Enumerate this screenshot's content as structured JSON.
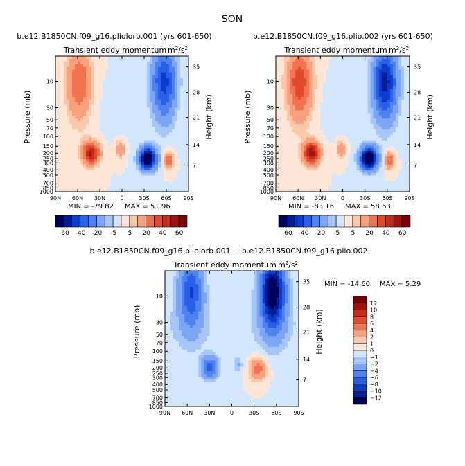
{
  "figure": {
    "season": "SON",
    "variable_label": "Transient eddy momentum",
    "units_base": "m",
    "units_exp_num": "2",
    "units_sep": "/",
    "units_den": "s",
    "units_exp_den": "2"
  },
  "chart_data": [
    {
      "type": "heatmap",
      "id": "panel-a",
      "title": "b.e12.B1850CN.f09_g16.pliolorb.001 (yrs 601-650)",
      "subtitle": "Transient eddy momentum",
      "xlabel": "",
      "ylabel": "Pressure (mb)",
      "y2label": "Height (km)",
      "x_ticks": [
        "90N",
        "60N",
        "30N",
        "0",
        "30S",
        "60S",
        "90S"
      ],
      "x_values": [
        90,
        60,
        30,
        0,
        -30,
        -60,
        -90
      ],
      "y_ticks": [
        "10",
        "30",
        "50",
        "70",
        "100",
        "150",
        "200",
        "250",
        "300",
        "400",
        "500",
        "700",
        "850",
        "1000"
      ],
      "y_values": [
        10,
        30,
        50,
        70,
        100,
        150,
        200,
        250,
        300,
        400,
        500,
        700,
        850,
        1000
      ],
      "y2_ticks": [
        "35",
        "28",
        "21",
        "14",
        "7"
      ],
      "ylim": [
        1000,
        3.5
      ],
      "min_label": "MIN = -79.82",
      "max_label": "MAX = 51.96",
      "min": -79.82,
      "max": 51.96,
      "colorbar_levels": [
        -70,
        -60,
        -50,
        -40,
        -30,
        -20,
        -10,
        -5,
        0,
        5,
        10,
        20,
        30,
        40,
        50,
        60,
        70
      ],
      "colorbar_labels": [
        "-60",
        "-40",
        "-20",
        "-5",
        "5",
        "20",
        "40",
        "60"
      ],
      "features": [
        {
          "lat": 58,
          "p": 10,
          "value": 30,
          "kind": "upper-jet"
        },
        {
          "lat": -57,
          "p": 10,
          "value": -45,
          "kind": "upper-jet"
        },
        {
          "lat": 42,
          "p": 200,
          "value": 52,
          "kind": "core"
        },
        {
          "lat": -35,
          "p": 250,
          "value": -80,
          "kind": "core"
        },
        {
          "lat": 2,
          "p": 170,
          "value": 18,
          "kind": "weak"
        },
        {
          "lat": -63,
          "p": 270,
          "value": 28,
          "kind": "weak"
        }
      ]
    },
    {
      "type": "heatmap",
      "id": "panel-b",
      "title": "b.e12.B1850CN.f09_g16.plio.002 (yrs 601-650)",
      "subtitle": "Transient eddy momentum",
      "xlabel": "",
      "ylabel": "Pressure (mb)",
      "y2label": "Height (km)",
      "x_ticks": [
        "90N",
        "60N",
        "30N",
        "0",
        "30S",
        "60S",
        "90S"
      ],
      "x_values": [
        90,
        60,
        30,
        0,
        -30,
        -60,
        -90
      ],
      "y_ticks": [
        "10",
        "30",
        "50",
        "70",
        "100",
        "150",
        "200",
        "250",
        "300",
        "400",
        "500",
        "700",
        "850",
        "1000"
      ],
      "y_values": [
        10,
        30,
        50,
        70,
        100,
        150,
        200,
        250,
        300,
        400,
        500,
        700,
        850,
        1000
      ],
      "y2_ticks": [
        "35",
        "28",
        "21",
        "14",
        "7"
      ],
      "ylim": [
        1000,
        3.5
      ],
      "min_label": "MIN = -83.16",
      "max_label": "MAX = 58.63",
      "min": -83.16,
      "max": 58.63,
      "colorbar_levels": [
        -70,
        -60,
        -50,
        -40,
        -30,
        -20,
        -10,
        -5,
        0,
        5,
        10,
        20,
        30,
        40,
        50,
        60,
        70
      ],
      "colorbar_labels": [
        "-60",
        "-40",
        "-20",
        "-5",
        "5",
        "20",
        "40",
        "60"
      ],
      "features": [
        {
          "lat": 58,
          "p": 10,
          "value": 38,
          "kind": "upper-jet"
        },
        {
          "lat": -57,
          "p": 10,
          "value": -55,
          "kind": "upper-jet"
        },
        {
          "lat": 42,
          "p": 200,
          "value": 58,
          "kind": "core"
        },
        {
          "lat": -35,
          "p": 250,
          "value": -83,
          "kind": "core"
        },
        {
          "lat": 2,
          "p": 170,
          "value": 18,
          "kind": "weak"
        },
        {
          "lat": -63,
          "p": 270,
          "value": 30,
          "kind": "weak"
        }
      ]
    },
    {
      "type": "heatmap",
      "id": "panel-diff",
      "title": "b.e12.B1850CN.f09_g16.pliolorb.001 − b.e12.B1850CN.f09_g16.plio.002",
      "subtitle": "Transient eddy momentum",
      "xlabel": "",
      "ylabel": "Pressure (mb)",
      "y2label": "Height (km)",
      "x_ticks": [
        "90N",
        "60N",
        "30N",
        "0",
        "30S",
        "60S",
        "90S"
      ],
      "x_values": [
        90,
        60,
        30,
        0,
        -30,
        -60,
        -90
      ],
      "y_ticks": [
        "10",
        "30",
        "50",
        "70",
        "100",
        "150",
        "200",
        "250",
        "300",
        "400",
        "500",
        "700",
        "850",
        "1000"
      ],
      "y_values": [
        10,
        30,
        50,
        70,
        100,
        150,
        200,
        250,
        300,
        400,
        500,
        700,
        850,
        1000
      ],
      "y2_ticks": [
        "35",
        "28",
        "21",
        "14",
        "7"
      ],
      "ylim": [
        1000,
        3.5
      ],
      "min_label": "MIN = -14.60",
      "max_label": "MAX =   5.29",
      "min": -14.6,
      "max": 5.29,
      "colorbar_levels": [
        -14,
        -12,
        -10,
        -8,
        -6,
        -4,
        -2,
        -1,
        0,
        1,
        2,
        4,
        6,
        8,
        10,
        12,
        14
      ],
      "colorbar_labels": [
        "12",
        "10",
        "8",
        "6",
        "4",
        "2",
        "1",
        "0",
        "−1",
        "−2",
        "−4",
        "−6",
        "−8",
        "−10",
        "−12"
      ],
      "features": [
        {
          "lat": 55,
          "p": 8,
          "value": -8,
          "kind": "upper-jet"
        },
        {
          "lat": -55,
          "p": 8,
          "value": -14.6,
          "kind": "upper-jet"
        },
        {
          "lat": 30,
          "p": 200,
          "value": -7,
          "kind": "core"
        },
        {
          "lat": -35,
          "p": 210,
          "value": 5.3,
          "kind": "core"
        },
        {
          "lat": -8,
          "p": 180,
          "value": -2,
          "kind": "weak"
        }
      ]
    }
  ],
  "colors": {
    "full_scale": [
      "#00005a",
      "#001c96",
      "#0b3ccd",
      "#2a5fe8",
      "#4f84f0",
      "#7aa6f5",
      "#a6c6fa",
      "#d2e6fc",
      "#fde6d6",
      "#fcc8a8",
      "#f9a17c",
      "#f2734f",
      "#e24a2c",
      "#c72a16",
      "#a1120d",
      "#7a0006"
    ],
    "diff_scale": [
      "#7a0006",
      "#a1120d",
      "#c72a16",
      "#e24a2c",
      "#f2734f",
      "#f9a17c",
      "#fcc8a8",
      "#fde6d6",
      "#d2e6fc",
      "#a6c6fa",
      "#7aa6f5",
      "#4f84f0",
      "#2a5fe8",
      "#0b3ccd",
      "#001c96",
      "#00005a"
    ]
  }
}
